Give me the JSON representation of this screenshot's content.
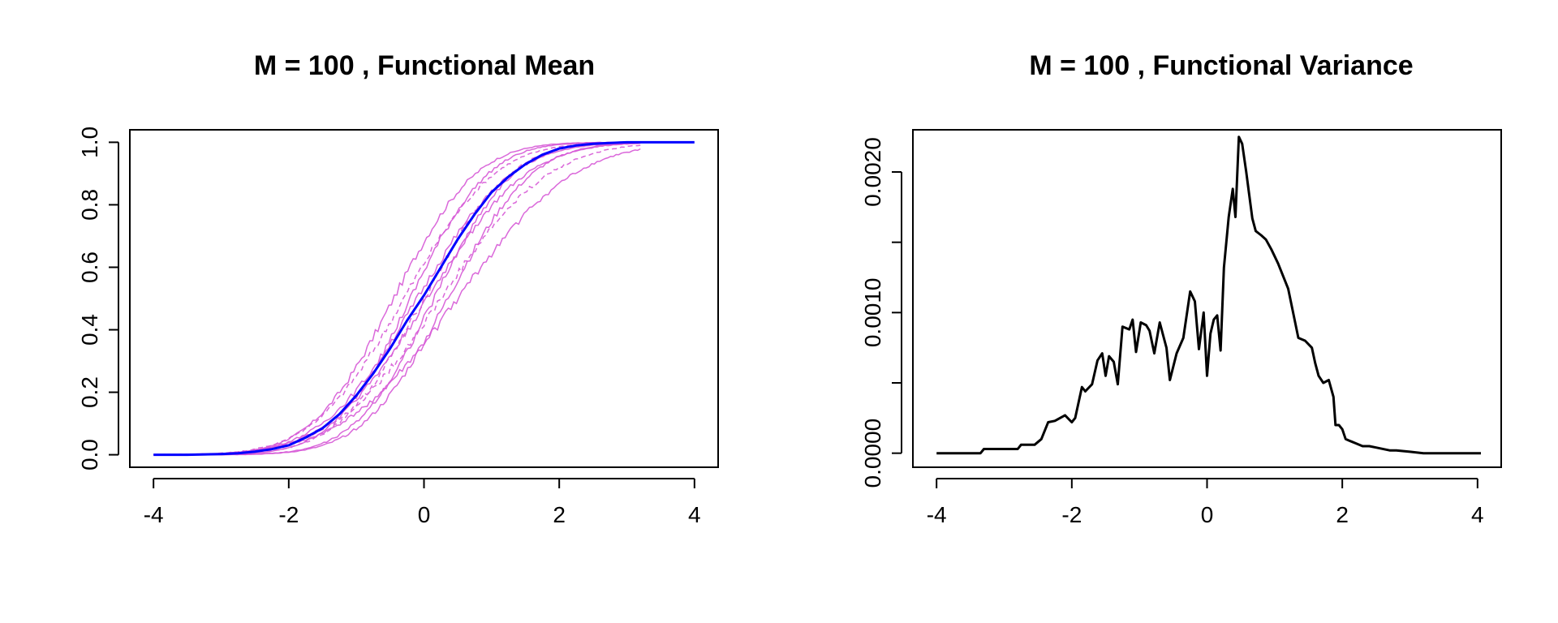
{
  "chart_data": [
    {
      "type": "line",
      "title": "M = 100 , Functional Mean",
      "xlabel": "",
      "ylabel": "",
      "xlim": [
        -4.35,
        4.35
      ],
      "ylim": [
        -0.04,
        1.04
      ],
      "x_ticks": [
        -4,
        -2,
        0,
        2,
        4
      ],
      "x_tick_labels": [
        "-4",
        "-2",
        "0",
        "2",
        "4"
      ],
      "y_ticks": [
        0,
        0.2,
        0.4,
        0.6,
        0.8,
        1
      ],
      "y_tick_labels": [
        "0.0",
        "0.2",
        "0.4",
        "0.6",
        "0.8",
        "1.0"
      ],
      "grid": false,
      "colors": {
        "samples": "#d658d6",
        "mean": "#0000ff"
      },
      "samples": {
        "count": 10,
        "style": "thin magenta empirical distribution curves (mix of solid and dashed)",
        "location_shifts": [
          -0.45,
          -0.3,
          -0.2,
          -0.1,
          0.0,
          0.05,
          0.15,
          0.25,
          0.35,
          0.5
        ],
        "scales": [
          0.95,
          1.05,
          0.9,
          1.1,
          1.0,
          1.15,
          0.92,
          1.25,
          0.98,
          1.35
        ]
      },
      "series": [
        {
          "role": "mean",
          "x": [
            -4.0,
            -3.5,
            -3.0,
            -2.75,
            -2.5,
            -2.25,
            -2.0,
            -1.75,
            -1.5,
            -1.25,
            -1.0,
            -0.75,
            -0.5,
            -0.25,
            0.0,
            0.25,
            0.5,
            0.75,
            1.0,
            1.25,
            1.5,
            1.75,
            2.0,
            2.25,
            2.5,
            2.75,
            3.0,
            3.5,
            4.0
          ],
          "y": [
            0.0,
            0.0,
            0.002,
            0.005,
            0.01,
            0.018,
            0.03,
            0.055,
            0.085,
            0.13,
            0.19,
            0.26,
            0.34,
            0.43,
            0.51,
            0.6,
            0.69,
            0.77,
            0.84,
            0.89,
            0.93,
            0.96,
            0.98,
            0.99,
            0.995,
            0.998,
            1.0,
            1.0,
            1.0
          ]
        }
      ]
    },
    {
      "type": "line",
      "title": "M = 100 , Functional Variance",
      "xlabel": "",
      "ylabel": "",
      "xlim": [
        -4.35,
        4.35
      ],
      "ylim": [
        -0.0001,
        0.0023
      ],
      "x_ticks": [
        -4,
        -2,
        0,
        2,
        4
      ],
      "x_tick_labels": [
        "-4",
        "-2",
        "0",
        "2",
        "4"
      ],
      "y_ticks": [
        0,
        0.0005,
        0.001,
        0.0015,
        0.002
      ],
      "y_tick_labels": [
        "0.0000",
        "",
        "0.0010",
        "",
        "0.0020"
      ],
      "grid": false,
      "colors": {
        "line": "#000000"
      },
      "series": [
        {
          "x": [
            -4.0,
            -3.35,
            -3.3,
            -2.8,
            -2.75,
            -2.55,
            -2.45,
            -2.35,
            -2.25,
            -2.1,
            -2.0,
            -1.95,
            -1.85,
            -1.8,
            -1.7,
            -1.62,
            -1.55,
            -1.5,
            -1.45,
            -1.38,
            -1.32,
            -1.25,
            -1.15,
            -1.1,
            -1.05,
            -0.98,
            -0.9,
            -0.85,
            -0.78,
            -0.7,
            -0.6,
            -0.55,
            -0.45,
            -0.35,
            -0.25,
            -0.18,
            -0.12,
            -0.05,
            0.0,
            0.05,
            0.1,
            0.15,
            0.2,
            0.25,
            0.32,
            0.38,
            0.42,
            0.47,
            0.52,
            0.58,
            0.62,
            0.67,
            0.72,
            0.8,
            0.87,
            0.95,
            1.05,
            1.2,
            1.35,
            1.45,
            1.55,
            1.6,
            1.65,
            1.72,
            1.8,
            1.87,
            1.9,
            1.95,
            2.0,
            2.05,
            2.1,
            2.15,
            2.2,
            2.3,
            2.4,
            2.5,
            2.7,
            2.8,
            3.0,
            3.2,
            3.6,
            4.05
          ],
          "y": [
            0.0,
            0.0,
            3e-05,
            3e-05,
            6e-05,
            6e-05,
            0.0001,
            0.00022,
            0.00023,
            0.00027,
            0.00022,
            0.00025,
            0.00047,
            0.00044,
            0.00049,
            0.00066,
            0.00071,
            0.00055,
            0.00069,
            0.00065,
            0.00049,
            0.0009,
            0.00088,
            0.00095,
            0.00072,
            0.00093,
            0.00091,
            0.00087,
            0.00071,
            0.00093,
            0.00075,
            0.00052,
            0.00071,
            0.00082,
            0.00115,
            0.00108,
            0.00074,
            0.001,
            0.00055,
            0.00085,
            0.00095,
            0.00098,
            0.00073,
            0.00132,
            0.00168,
            0.00188,
            0.00168,
            0.00225,
            0.0022,
            0.002,
            0.00185,
            0.00167,
            0.00158,
            0.00155,
            0.00152,
            0.00145,
            0.00135,
            0.00117,
            0.00082,
            0.0008,
            0.00075,
            0.00064,
            0.00055,
            0.0005,
            0.00052,
            0.0004,
            0.0002,
            0.0002,
            0.00017,
            0.0001,
            9e-05,
            8e-05,
            7e-05,
            5e-05,
            5e-05,
            4e-05,
            2e-05,
            2e-05,
            1e-05,
            0.0,
            0.0,
            0.0
          ]
        }
      ]
    }
  ]
}
